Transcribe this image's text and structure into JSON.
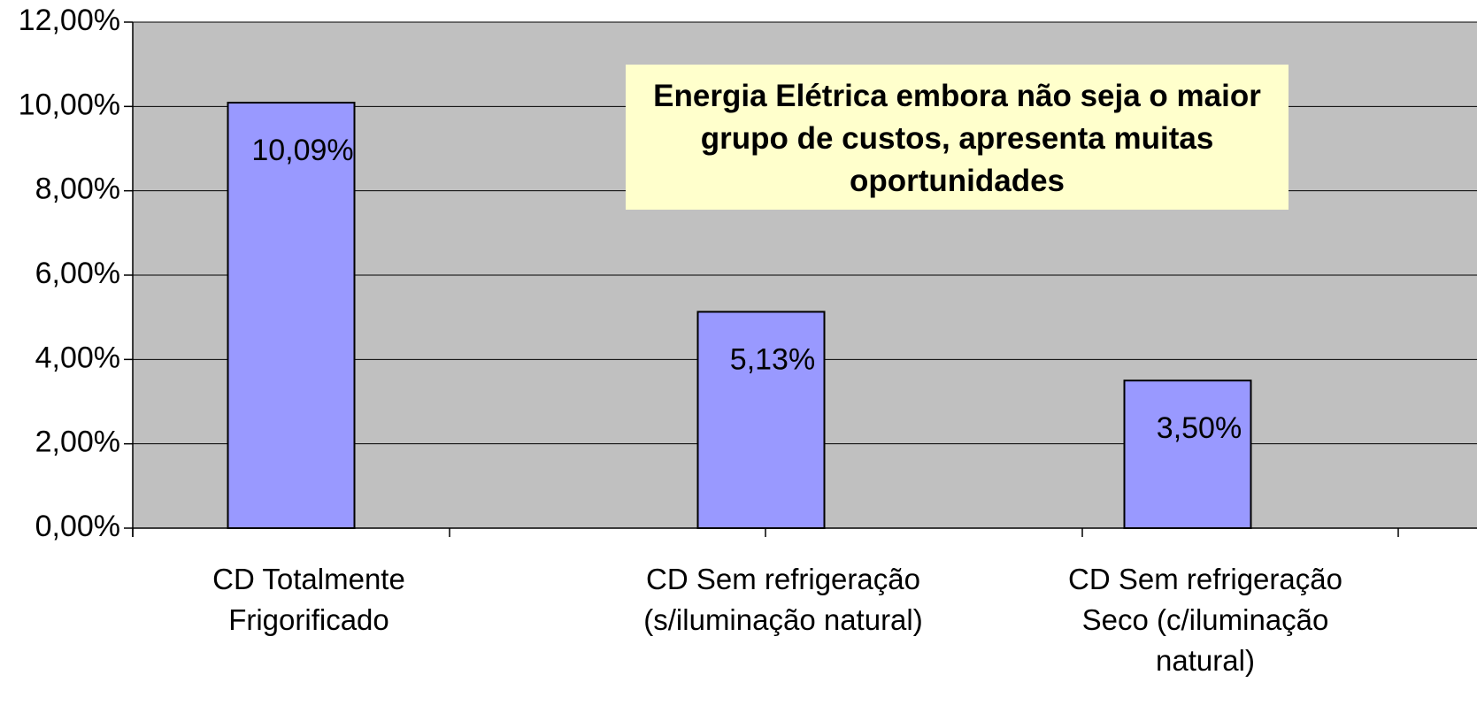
{
  "chart_data": {
    "type": "bar",
    "annotation": "Energia Elétrica embora não seja o maior grupo de custos, apresenta muitas oportunidades",
    "categories": [
      "CD Totalmente Frigorificado",
      "CD Sem refrigeração (s/iluminação natural)",
      "CD Sem refrigeração Seco (c/iluminação natural)"
    ],
    "values": [
      10.09,
      5.13,
      3.5
    ],
    "value_labels": [
      "10,09%",
      "5,13%",
      "3,50%"
    ],
    "color": "#9999ff",
    "ylim": [
      0,
      12
    ],
    "yticks": [
      {
        "value": 0,
        "label": "0,00%"
      },
      {
        "value": 2,
        "label": "2,00%"
      },
      {
        "value": 4,
        "label": "4,00%"
      },
      {
        "value": 6,
        "label": "6,00%"
      },
      {
        "value": 8,
        "label": "8,00%"
      },
      {
        "value": 10,
        "label": "10,00%"
      },
      {
        "value": 12,
        "label": "12,00%"
      }
    ],
    "grid": true
  }
}
